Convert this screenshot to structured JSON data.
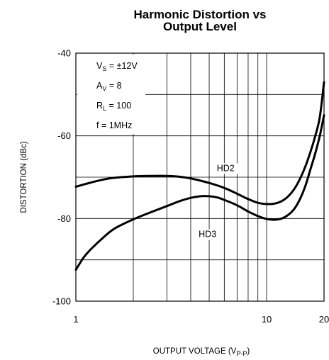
{
  "chart_data": {
    "type": "line",
    "title_line1": "Harmonic Distortion vs",
    "title_line2": "Output Level",
    "xlabel_main": "OUTPUT VOLTAGE (V",
    "xlabel_sub": "P-P",
    "xlabel_close": ")",
    "ylabel": "DISTORTION (dBc)",
    "xscale": "log",
    "xlim": [
      1,
      20
    ],
    "ylim": [
      -100,
      -40
    ],
    "x_ticks": [
      {
        "value": 1,
        "label": "1"
      },
      {
        "value": 10,
        "label": "10"
      },
      {
        "value": 20,
        "label": "20"
      }
    ],
    "y_ticks": [
      {
        "value": -40,
        "label": "-40"
      },
      {
        "value": -60,
        "label": "-60"
      },
      {
        "value": -80,
        "label": "-80"
      },
      {
        "value": -100,
        "label": "-100"
      }
    ],
    "conditions": [
      {
        "main": "V",
        "sub": "S",
        "rest": " = ±12V"
      },
      {
        "main": "A",
        "sub": "V",
        "rest": " = 8"
      },
      {
        "main": "R",
        "sub": "L",
        "rest": " = 100"
      },
      {
        "main": "f = 1MHz",
        "sub": "",
        "rest": ""
      }
    ],
    "series": [
      {
        "name": "HD2",
        "label_at": {
          "x": 6.1,
          "y": -68.5
        },
        "points": [
          [
            1,
            -72.3
          ],
          [
            1.2,
            -71.3
          ],
          [
            1.5,
            -70.3
          ],
          [
            2,
            -69.8
          ],
          [
            2.5,
            -69.7
          ],
          [
            3,
            -69.7
          ],
          [
            3.5,
            -69.9
          ],
          [
            4,
            -70.3
          ],
          [
            5,
            -71.4
          ],
          [
            6,
            -72.6
          ],
          [
            7,
            -74
          ],
          [
            8,
            -75.3
          ],
          [
            9,
            -76.2
          ],
          [
            10,
            -76.5
          ],
          [
            11,
            -76.4
          ],
          [
            12,
            -75.8
          ],
          [
            13,
            -74.6
          ],
          [
            14,
            -72.8
          ],
          [
            15,
            -70.3
          ],
          [
            16,
            -67.3
          ],
          [
            17,
            -63.8
          ],
          [
            18,
            -60
          ],
          [
            19,
            -55.5
          ],
          [
            20,
            -47
          ]
        ]
      },
      {
        "name": "HD3",
        "label_at": {
          "x": 4.9,
          "y": -84.5
        },
        "points": [
          [
            1,
            -92.4
          ],
          [
            1.1,
            -89.4
          ],
          [
            1.2,
            -87.4
          ],
          [
            1.4,
            -84.5
          ],
          [
            1.6,
            -82.4
          ],
          [
            2,
            -80.2
          ],
          [
            2.5,
            -78.4
          ],
          [
            3,
            -77
          ],
          [
            3.5,
            -75.8
          ],
          [
            4,
            -75
          ],
          [
            4.5,
            -74.6
          ],
          [
            5,
            -74.6
          ],
          [
            5.5,
            -74.9
          ],
          [
            6,
            -75.5
          ],
          [
            7,
            -76.8
          ],
          [
            8,
            -78.3
          ],
          [
            9,
            -79.4
          ],
          [
            10,
            -80.1
          ],
          [
            11,
            -80.3
          ],
          [
            12,
            -80
          ],
          [
            13,
            -79.1
          ],
          [
            14,
            -77.6
          ],
          [
            15,
            -75.2
          ],
          [
            16,
            -72
          ],
          [
            17,
            -68
          ],
          [
            18,
            -64.2
          ],
          [
            19,
            -60
          ],
          [
            20,
            -55
          ]
        ]
      }
    ]
  }
}
